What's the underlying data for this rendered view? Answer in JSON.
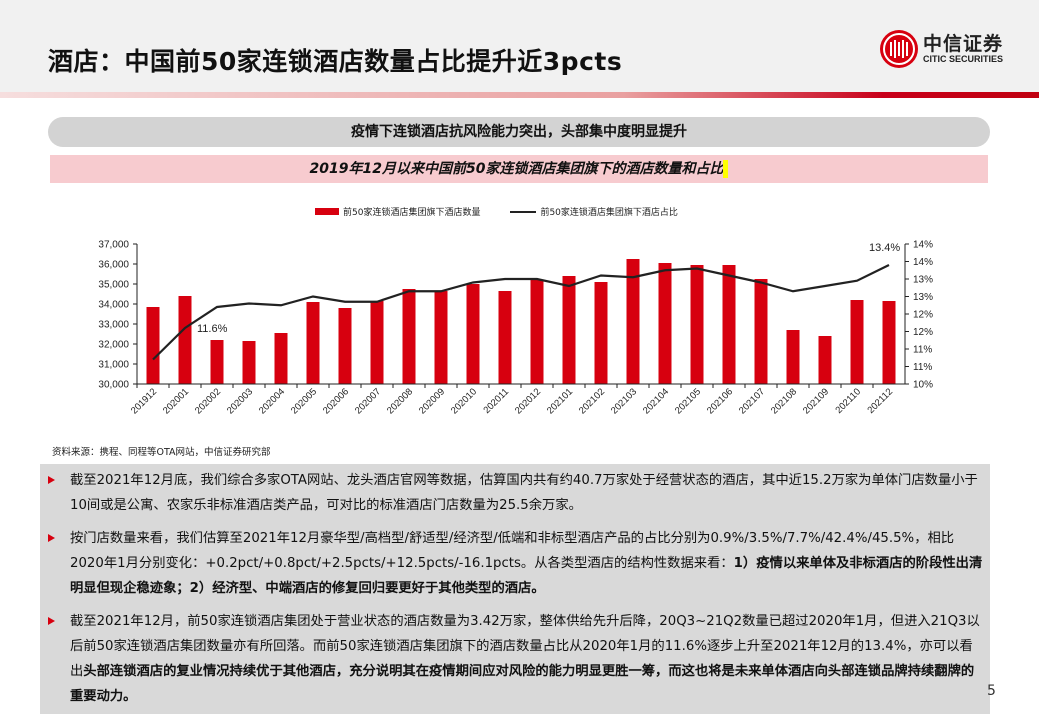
{
  "header": {
    "title": "酒店：中国前50家连锁酒店数量占比提升近3pcts"
  },
  "logo": {
    "cn": "中信证券",
    "en": "CITIC SECURITIES",
    "color": "#d7000f"
  },
  "summary": "疫情下连锁酒店抗风险能力突出，头部集中度明显提升",
  "chart_title": "2019年12月以来中国前50家连锁酒店集团旗下的酒店数量和占比",
  "chart_data": {
    "type": "bar+line",
    "categories": [
      "201912",
      "202001",
      "202002",
      "202003",
      "202004",
      "202005",
      "202006",
      "202007",
      "202008",
      "202009",
      "202010",
      "202011",
      "202012",
      "202101",
      "202102",
      "202103",
      "202104",
      "202105",
      "202106",
      "202107",
      "202108",
      "202109",
      "202110",
      "202112"
    ],
    "series": [
      {
        "name": "前50家连锁酒店集团旗下酒店数量",
        "type": "bar",
        "axis": "left",
        "color": "#d7000f",
        "values": [
          33850,
          34400,
          32200,
          32150,
          32550,
          34100,
          33800,
          34150,
          34750,
          34650,
          35000,
          34650,
          35200,
          35400,
          35100,
          36250,
          36050,
          35950,
          35950,
          35250,
          32700,
          32400,
          34200,
          34150
        ]
      },
      {
        "name": "前50家连锁酒店集团旗下酒店占比",
        "type": "line",
        "axis": "right",
        "color": "#222222",
        "values": [
          10.7,
          11.6,
          12.2,
          12.3,
          12.25,
          12.5,
          12.35,
          12.35,
          12.65,
          12.65,
          12.9,
          13.0,
          13.0,
          12.8,
          13.1,
          13.05,
          13.25,
          13.3,
          13.1,
          12.9,
          12.65,
          12.8,
          12.95,
          13.4
        ]
      }
    ],
    "annotations": [
      {
        "category": "202001",
        "text": "11.6%"
      },
      {
        "category": "202112",
        "text": "13.4%"
      }
    ],
    "ylim": [
      30000,
      37000
    ],
    "yticks": [
      "30,000",
      "31,000",
      "32,000",
      "33,000",
      "34,000",
      "35,000",
      "36,000",
      "37,000"
    ],
    "y2lim": [
      10,
      14
    ],
    "y2ticks": [
      "10%",
      "11%",
      "11%",
      "12%",
      "12%",
      "13%",
      "13%",
      "14%",
      "14%"
    ],
    "legend": "top",
    "grid": false
  },
  "source": "资料来源：携程、同程等OTA网站，中信证券研究部",
  "bullets": [
    [
      {
        "t": "截至2021年12月底，我们综合多家OTA网站、龙头酒店官网等数据，估算国内共有约40.7万家处于经营状态的酒店，其中近15.2万家为单体门店数量小于10间或是公寓、农家乐非标准酒店类产品，可对比的标准酒店门店数量为25.5余万家。",
        "b": false
      }
    ],
    [
      {
        "t": "按门店数量来看，我们估算至2021年12月豪华型/高档型/舒适型/经济型/低端和非标型酒店产品的占比分别为0.9%/3.5%/7.7%/42.4%/45.5%，相比2020年1月分别变化：+0.2pct/+0.8pct/+2.5pcts/+12.5pcts/-16.1pcts。从各类型酒店的结构性数据来看：",
        "b": false
      },
      {
        "t": "1）疫情以来单体及非标酒店的阶段性出清明显但现企稳迹象；2）经济型、中端酒店的修复回归要更好于其他类型的酒店。",
        "b": true
      }
    ],
    [
      {
        "t": "截至2021年12月，前50家连锁酒店集团处于营业状态的酒店数量为3.42万家，整体供给先升后降，20Q3~21Q2数量已超过2020年1月，但进入21Q3以后前50家连锁酒店集团数量亦有所回落。而前50家连锁酒店集团旗下的酒店数量占比从2020年1月的11.6%逐步上升至2021年12月的13.4%，亦可以看出",
        "b": false
      },
      {
        "t": "头部连锁酒店的复业情况持续优于其他酒店，充分说明其在疫情期间应对风险的能力明显更胜一筹，而这也将是未来单体酒店向头部连锁品牌持续翻牌的重要动力。",
        "b": true
      }
    ]
  ],
  "page_number": "5"
}
